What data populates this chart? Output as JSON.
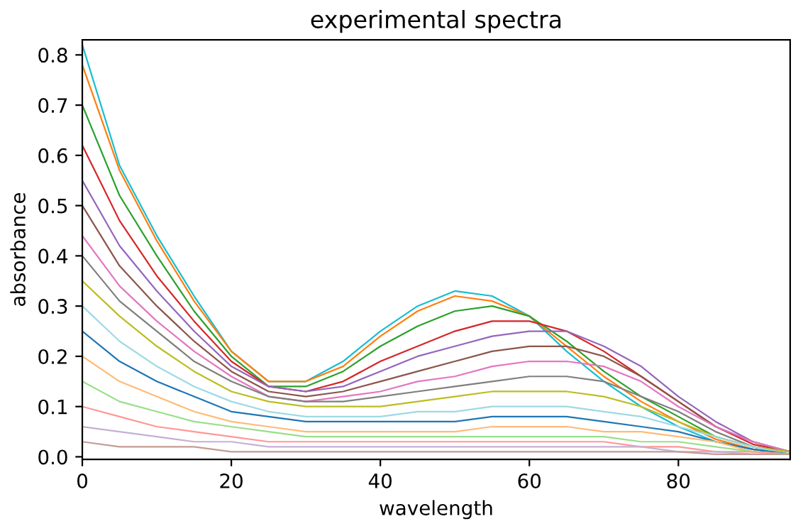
{
  "chart_data": {
    "type": "line",
    "title": "experimental spectra",
    "xlabel": "wavelength",
    "ylabel": "absorbance",
    "x": [
      0,
      5,
      10,
      15,
      20,
      25,
      30,
      35,
      40,
      45,
      50,
      55,
      60,
      65,
      70,
      75,
      80,
      85,
      90,
      95
    ],
    "xlim": [
      0,
      95
    ],
    "xticks": [
      0,
      20,
      40,
      60,
      80
    ],
    "ylim": [
      -0.005,
      0.83
    ],
    "yticks": [
      {
        "value": 0,
        "label": "0.0"
      },
      0.1,
      0.2,
      0.3,
      0.4,
      0.5,
      0.6,
      0.7,
      0.8
    ],
    "grid": false,
    "legend": false,
    "marker": "none",
    "line_style": "solid",
    "series": [
      {
        "color": "#17becf",
        "values": [
          0.82,
          0.58,
          0.44,
          0.32,
          0.21,
          0.15,
          0.15,
          0.19,
          0.25,
          0.3,
          0.33,
          0.32,
          0.28,
          0.21,
          0.15,
          0.1,
          0.06,
          0.03,
          0.015,
          0.005
        ]
      },
      {
        "color": "#ff7f0e",
        "values": [
          0.78,
          0.57,
          0.43,
          0.31,
          0.21,
          0.15,
          0.15,
          0.18,
          0.24,
          0.29,
          0.32,
          0.31,
          0.28,
          0.22,
          0.16,
          0.11,
          0.07,
          0.035,
          0.015,
          0.005
        ]
      },
      {
        "color": "#2ca02c",
        "values": [
          0.7,
          0.52,
          0.4,
          0.29,
          0.2,
          0.14,
          0.14,
          0.17,
          0.22,
          0.26,
          0.29,
          0.3,
          0.28,
          0.23,
          0.17,
          0.12,
          0.08,
          0.04,
          0.02,
          0.005
        ]
      },
      {
        "color": "#d62728",
        "values": [
          0.62,
          0.47,
          0.36,
          0.27,
          0.19,
          0.14,
          0.13,
          0.15,
          0.19,
          0.22,
          0.25,
          0.27,
          0.27,
          0.25,
          0.21,
          0.16,
          0.11,
          0.06,
          0.025,
          0.01
        ]
      },
      {
        "color": "#9467bd",
        "values": [
          0.55,
          0.42,
          0.33,
          0.25,
          0.18,
          0.14,
          0.13,
          0.14,
          0.17,
          0.2,
          0.22,
          0.24,
          0.25,
          0.25,
          0.22,
          0.18,
          0.12,
          0.07,
          0.03,
          0.01
        ]
      },
      {
        "color": "#8c564b",
        "values": [
          0.5,
          0.38,
          0.3,
          0.23,
          0.17,
          0.13,
          0.12,
          0.13,
          0.15,
          0.17,
          0.19,
          0.21,
          0.22,
          0.22,
          0.2,
          0.16,
          0.11,
          0.06,
          0.03,
          0.01
        ]
      },
      {
        "color": "#e377c2",
        "values": [
          0.44,
          0.34,
          0.27,
          0.21,
          0.16,
          0.12,
          0.11,
          0.12,
          0.13,
          0.15,
          0.16,
          0.18,
          0.19,
          0.19,
          0.18,
          0.15,
          0.1,
          0.06,
          0.03,
          0.01
        ]
      },
      {
        "color": "#7f7f7f",
        "values": [
          0.4,
          0.31,
          0.25,
          0.19,
          0.15,
          0.12,
          0.11,
          0.11,
          0.12,
          0.13,
          0.14,
          0.15,
          0.16,
          0.16,
          0.15,
          0.12,
          0.09,
          0.05,
          0.02,
          0.01
        ]
      },
      {
        "color": "#bcbd22",
        "values": [
          0.35,
          0.28,
          0.22,
          0.17,
          0.13,
          0.11,
          0.1,
          0.1,
          0.1,
          0.11,
          0.12,
          0.13,
          0.13,
          0.13,
          0.12,
          0.1,
          0.07,
          0.04,
          0.02,
          0.01
        ]
      },
      {
        "color": "#9edae5",
        "values": [
          0.3,
          0.23,
          0.18,
          0.14,
          0.11,
          0.09,
          0.08,
          0.08,
          0.08,
          0.09,
          0.09,
          0.1,
          0.1,
          0.1,
          0.09,
          0.08,
          0.06,
          0.04,
          0.02,
          0.005
        ]
      },
      {
        "color": "#1f77b4",
        "values": [
          0.25,
          0.19,
          0.15,
          0.12,
          0.09,
          0.08,
          0.07,
          0.07,
          0.07,
          0.07,
          0.07,
          0.08,
          0.08,
          0.08,
          0.07,
          0.06,
          0.05,
          0.03,
          0.015,
          0.005
        ]
      },
      {
        "color": "#ffbb78",
        "values": [
          0.2,
          0.15,
          0.12,
          0.09,
          0.07,
          0.06,
          0.05,
          0.05,
          0.05,
          0.05,
          0.05,
          0.06,
          0.06,
          0.06,
          0.05,
          0.05,
          0.04,
          0.03,
          0.01,
          0.005
        ]
      },
      {
        "color": "#98df8a",
        "values": [
          0.15,
          0.11,
          0.09,
          0.07,
          0.06,
          0.05,
          0.04,
          0.04,
          0.04,
          0.04,
          0.04,
          0.04,
          0.04,
          0.04,
          0.04,
          0.03,
          0.03,
          0.02,
          0.01,
          0.005
        ]
      },
      {
        "color": "#ff9896",
        "values": [
          0.1,
          0.08,
          0.06,
          0.05,
          0.04,
          0.03,
          0.03,
          0.03,
          0.03,
          0.03,
          0.03,
          0.03,
          0.03,
          0.03,
          0.03,
          0.02,
          0.02,
          0.01,
          0.01,
          0.005
        ]
      },
      {
        "color": "#c5b0d5",
        "values": [
          0.06,
          0.05,
          0.04,
          0.03,
          0.03,
          0.02,
          0.02,
          0.02,
          0.02,
          0.02,
          0.02,
          0.02,
          0.02,
          0.02,
          0.02,
          0.02,
          0.01,
          0.01,
          0.005,
          0.005
        ]
      },
      {
        "color": "#c49c94",
        "values": [
          0.03,
          0.02,
          0.02,
          0.02,
          0.01,
          0.01,
          0.01,
          0.01,
          0.01,
          0.01,
          0.01,
          0.01,
          0.01,
          0.01,
          0.01,
          0.01,
          0.01,
          0.005,
          0.005,
          0.005
        ]
      }
    ]
  }
}
